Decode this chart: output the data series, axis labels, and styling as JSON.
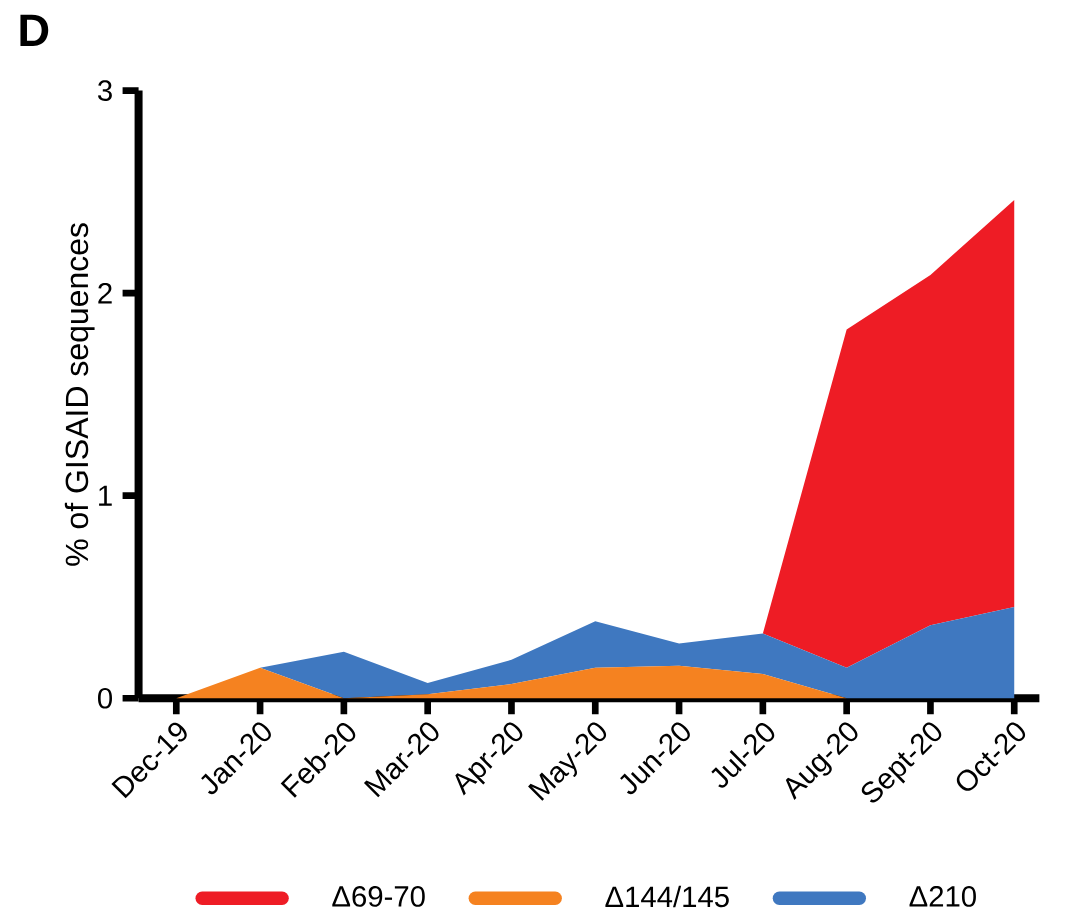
{
  "chart_data": {
    "type": "area",
    "stacked": true,
    "annotations": [
      "D"
    ],
    "ylabel": "% of GISAID sequences",
    "categories": [
      "Dec-19",
      "Jan-20",
      "Feb-20",
      "Mar-20",
      "Apr-20",
      "May-20",
      "Jun-20",
      "Jul-20",
      "Aug-20",
      "Sept-20",
      "Oct-20"
    ],
    "series": [
      {
        "name": "Δ144/145",
        "color": "#f58220",
        "values": [
          0,
          0.15,
          0,
          0.02,
          0.07,
          0.15,
          0.16,
          0.12,
          0,
          0,
          0
        ]
      },
      {
        "name": "Δ210",
        "color": "#3f78c0",
        "values": [
          0,
          0,
          0.23,
          0.055,
          0.12,
          0.23,
          0.11,
          0.2,
          0.15,
          0.36,
          0.45
        ]
      },
      {
        "name": "Δ69-70",
        "color": "#ee1c25",
        "values": [
          0,
          0,
          0,
          0,
          0,
          0,
          0,
          0,
          1.67,
          1.73,
          2.01
        ]
      }
    ],
    "ylim": [
      0,
      3
    ],
    "yticks": [
      0,
      1,
      2,
      3
    ],
    "legend": "bottom",
    "grid": false
  }
}
